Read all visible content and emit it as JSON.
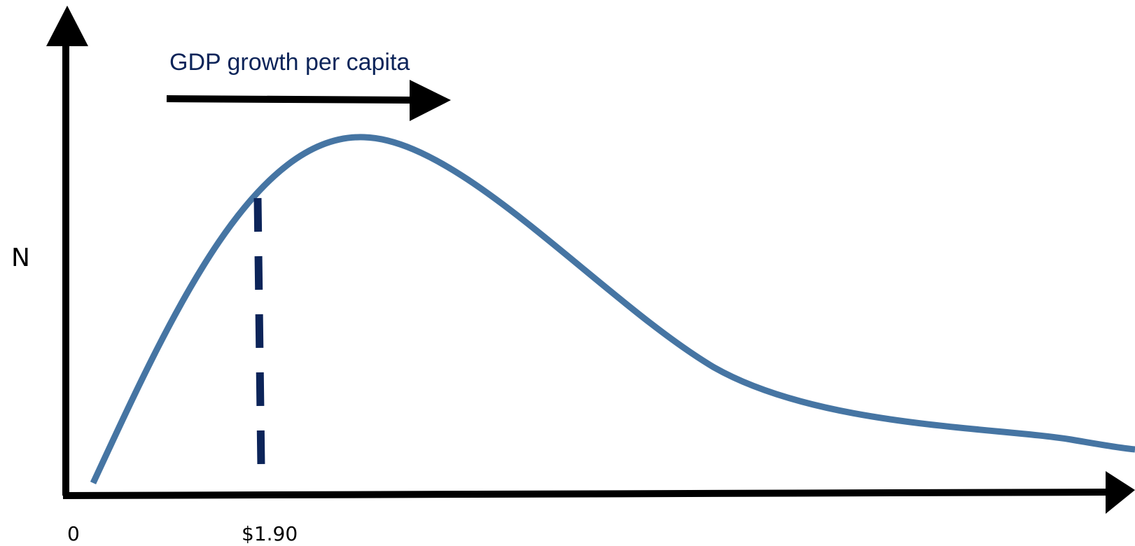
{
  "diagram": {
    "title": "GDP growth per capita",
    "y_axis_label": "N",
    "x_ticks": [
      "0",
      "$1.90"
    ],
    "colors": {
      "curve": "#4675A3",
      "poverty_line": "#0C2459",
      "title": "#0C2459",
      "axes": "#000000",
      "text": "#000000"
    }
  }
}
